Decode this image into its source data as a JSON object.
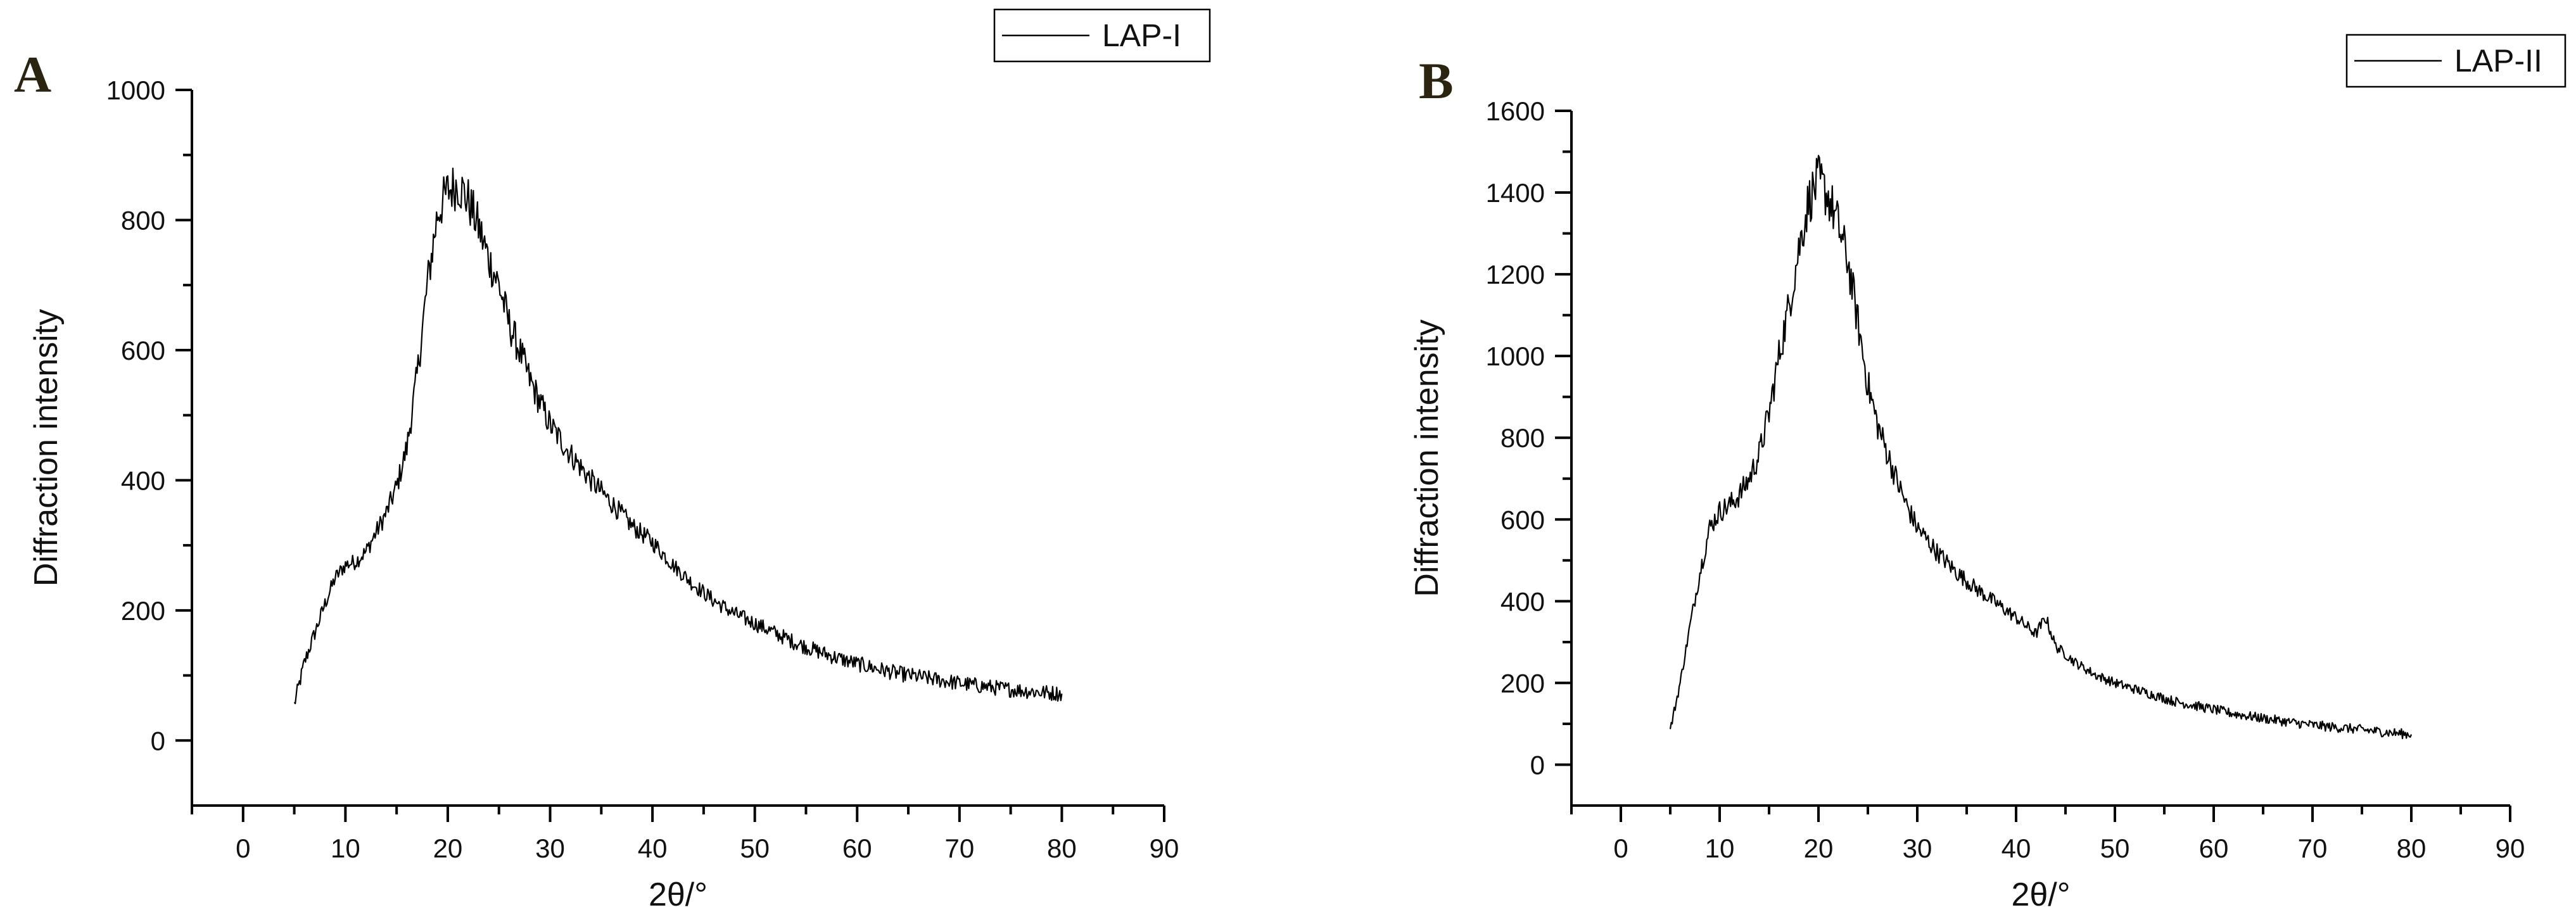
{
  "chart_data": [
    {
      "type": "line",
      "panel_label": "A",
      "legend": [
        "LAP-I"
      ],
      "legend_position": "top-right, outside plot",
      "xlabel": "2θ/°",
      "ylabel": "Diffraction intensity",
      "xlim": [
        -5,
        90
      ],
      "ylim": [
        -100,
        1000
      ],
      "xticks": [
        0,
        10,
        20,
        30,
        40,
        50,
        60,
        70,
        80,
        90
      ],
      "yticks": [
        0,
        200,
        400,
        600,
        800,
        1000
      ],
      "grid": false,
      "series": [
        {
          "name": "LAP-I",
          "color": "#000000",
          "x": [
            5,
            6,
            7,
            8,
            9,
            10,
            11,
            12,
            13,
            14,
            15,
            16,
            17,
            18,
            19,
            20,
            21,
            22,
            23,
            24,
            25,
            26,
            27,
            28,
            29,
            30,
            32,
            34,
            36,
            38,
            40,
            42,
            44,
            46,
            48,
            50,
            52,
            54,
            56,
            58,
            60,
            62,
            64,
            66,
            68,
            70,
            72,
            74,
            76,
            78,
            80
          ],
          "y": [
            55,
            120,
            165,
            210,
            250,
            270,
            275,
            290,
            320,
            350,
            390,
            450,
            560,
            700,
            810,
            845,
            855,
            830,
            790,
            740,
            700,
            640,
            600,
            555,
            520,
            485,
            440,
            400,
            365,
            330,
            305,
            270,
            240,
            215,
            195,
            180,
            165,
            150,
            138,
            127,
            118,
            110,
            103,
            98,
            93,
            88,
            84,
            80,
            77,
            74,
            72
          ]
        }
      ]
    },
    {
      "type": "line",
      "panel_label": "B",
      "legend": [
        "LAP-II"
      ],
      "legend_position": "top-right, outside plot",
      "xlabel": "2θ/°",
      "ylabel": "Diffraction intensity",
      "xlim": [
        -5,
        90
      ],
      "ylim": [
        -100,
        1600
      ],
      "xticks": [
        0,
        10,
        20,
        30,
        40,
        50,
        60,
        70,
        80,
        90
      ],
      "yticks": [
        0,
        200,
        400,
        600,
        800,
        1000,
        1200,
        1400,
        1600
      ],
      "grid": false,
      "series": [
        {
          "name": "LAP-II",
          "color": "#000000",
          "x": [
            5,
            6,
            7,
            8,
            9,
            10,
            11,
            12,
            13,
            14,
            15,
            16,
            17,
            18,
            19,
            20,
            21,
            22,
            23,
            24,
            25,
            26,
            27,
            28,
            29,
            30,
            32,
            34,
            36,
            38,
            40,
            42,
            43,
            44,
            46,
            48,
            50,
            52,
            54,
            56,
            58,
            60,
            62,
            64,
            66,
            68,
            70,
            72,
            74,
            76,
            78,
            80
          ],
          "y": [
            85,
            200,
            340,
            470,
            580,
            620,
            635,
            660,
            700,
            760,
            860,
            1000,
            1120,
            1260,
            1380,
            1430,
            1390,
            1320,
            1230,
            1080,
            930,
            830,
            760,
            690,
            630,
            580,
            520,
            470,
            430,
            395,
            360,
            320,
            360,
            290,
            250,
            220,
            200,
            185,
            170,
            155,
            145,
            135,
            125,
            117,
            110,
            103,
            97,
            92,
            88,
            83,
            78,
            74
          ]
        }
      ]
    }
  ]
}
